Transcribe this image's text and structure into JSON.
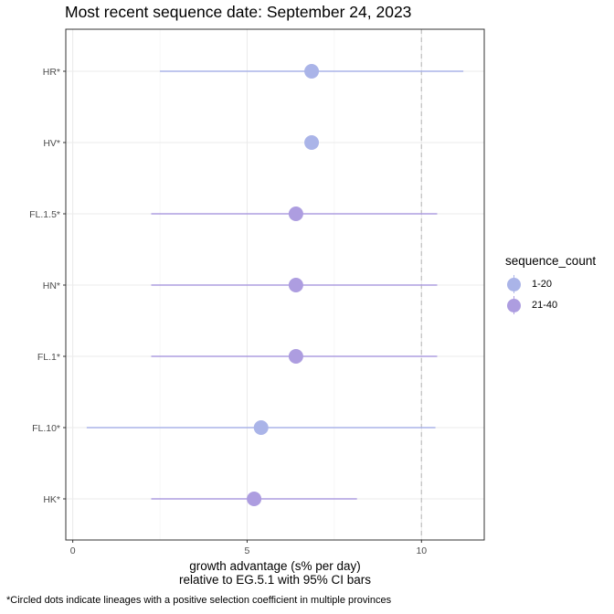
{
  "chart_data": {
    "type": "scatter",
    "title": "Most recent sequence date: September 24, 2023",
    "xlabel_line1": "growth advantage (s% per day)",
    "xlabel_line2": "relative to  EG.5.1  with 95% CI bars",
    "caption": "*Circled dots indicate lineages with a positive selection coefficient in multiple provinces",
    "xlim": [
      -0.2,
      11.8
    ],
    "x_ticks": [
      0,
      5,
      10
    ],
    "x_tick_labels": [
      "0",
      "5",
      "10"
    ],
    "reference_line_x": 10,
    "grid": true,
    "legend_position": "right",
    "legend_title": "sequence_count",
    "legend": [
      {
        "label": "1-20",
        "color": "#aab4e8"
      },
      {
        "label": "21-40",
        "color": "#ad9de0"
      }
    ],
    "categories": [
      "HR*",
      "HV*",
      "FL.1.5*",
      "HN*",
      "FL.1*",
      "FL.10*",
      "HK*"
    ],
    "points": [
      {
        "label": "HR*",
        "x": 6.85,
        "lo": 2.5,
        "hi": 11.2,
        "group": "1-20"
      },
      {
        "label": "HV*",
        "x": 6.85,
        "lo": null,
        "hi": null,
        "group": "1-20"
      },
      {
        "label": "FL.1.5*",
        "x": 6.4,
        "lo": 2.25,
        "hi": 10.45,
        "group": "21-40"
      },
      {
        "label": "HN*",
        "x": 6.4,
        "lo": 2.25,
        "hi": 10.45,
        "group": "21-40"
      },
      {
        "label": "FL.1*",
        "x": 6.4,
        "lo": 2.25,
        "hi": 10.45,
        "group": "21-40"
      },
      {
        "label": "FL.10*",
        "x": 5.4,
        "lo": 0.4,
        "hi": 10.4,
        "group": "1-20"
      },
      {
        "label": "HK*",
        "x": 5.2,
        "lo": 2.25,
        "hi": 8.15,
        "group": "21-40"
      }
    ]
  }
}
